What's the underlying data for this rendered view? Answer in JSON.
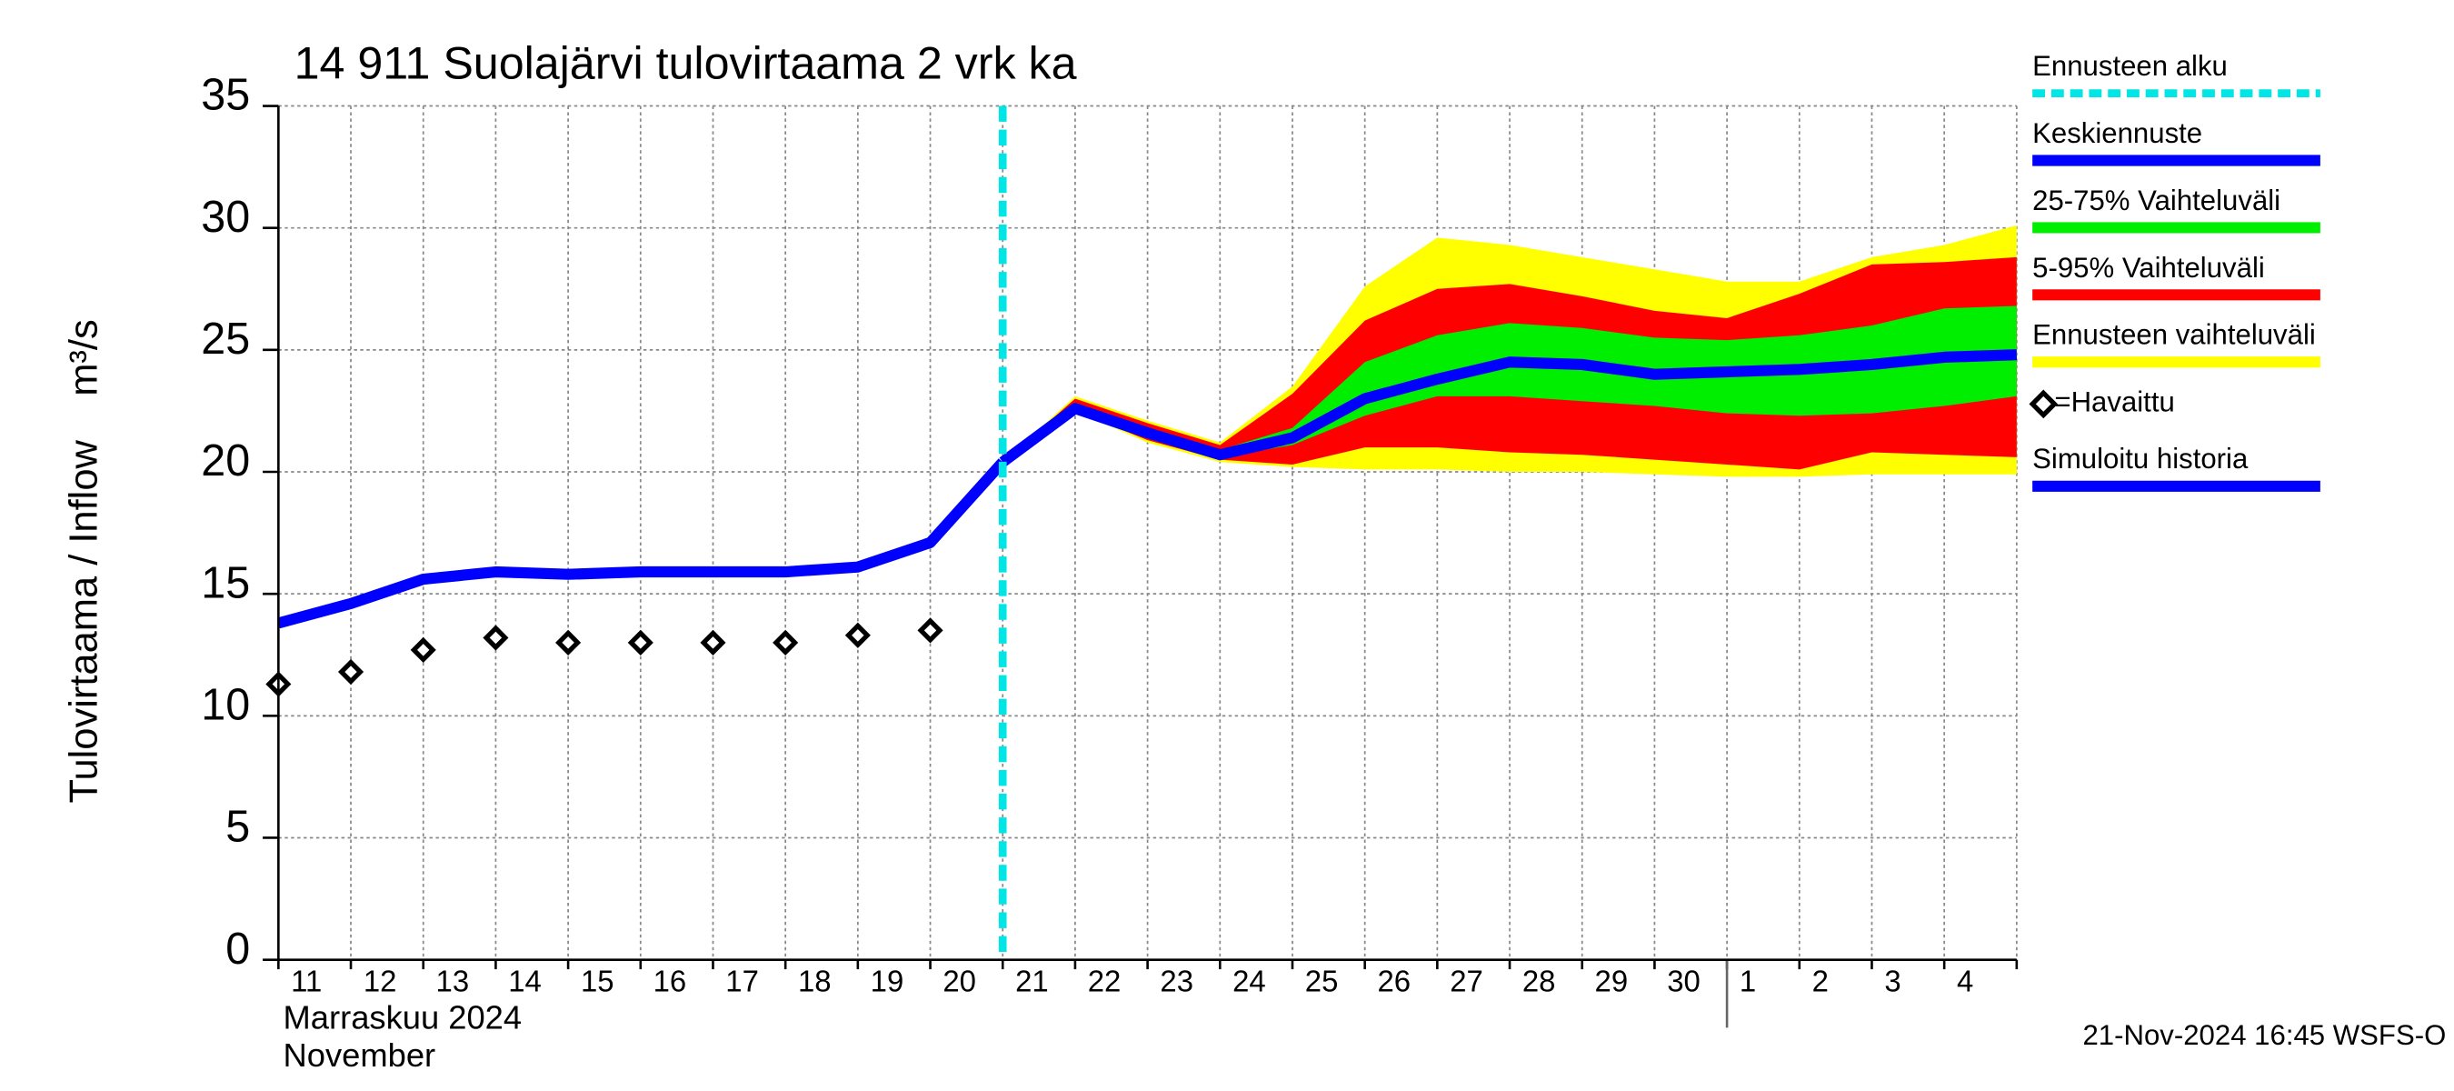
{
  "chart_data": {
    "type": "line",
    "title": "14 911 Suolajärvi tulovirtaama 2 vrk ka",
    "ylabel": "Tulovirtaama / Inflow    m³/s",
    "month_label": "Marraskuu 2024",
    "month_label_en": "November",
    "timestamp": "21-Nov-2024 16:45 WSFS-O",
    "categories": [
      "11",
      "12",
      "13",
      "14",
      "15",
      "16",
      "17",
      "18",
      "19",
      "20",
      "21",
      "22",
      "23",
      "24",
      "25",
      "26",
      "27",
      "28",
      "29",
      "30",
      "1",
      "2",
      "3",
      "4",
      null
    ],
    "month_break": "1",
    "forecast_start": {
      "name": "Ennusteen alku",
      "color": "#00e5e5",
      "at": "21"
    },
    "ylim": [
      0,
      35
    ],
    "yticks": [
      0,
      5,
      10,
      15,
      20,
      25,
      30,
      35
    ],
    "grid": true,
    "series": [
      {
        "name": "Keskiennuste",
        "kind": "line",
        "color": "#0000ff",
        "values": [
          null,
          null,
          null,
          null,
          null,
          null,
          null,
          null,
          null,
          null,
          20.4,
          22.6,
          21.6,
          20.7,
          21.4,
          23.0,
          23.8,
          24.5,
          24.4,
          24.0,
          24.1,
          24.2,
          24.4,
          24.7,
          24.8
        ]
      },
      {
        "name": "25-75% Vaihteluväli",
        "kind": "band",
        "color": "#00ee00",
        "lower": [
          null,
          null,
          null,
          null,
          null,
          null,
          null,
          null,
          null,
          null,
          20.4,
          22.6,
          21.5,
          20.6,
          21.1,
          22.3,
          23.1,
          23.1,
          22.9,
          22.7,
          22.4,
          22.3,
          22.4,
          22.7,
          23.1
        ],
        "upper": [
          null,
          null,
          null,
          null,
          null,
          null,
          null,
          null,
          null,
          null,
          20.4,
          22.8,
          21.8,
          20.9,
          21.8,
          24.5,
          25.6,
          26.1,
          25.9,
          25.5,
          25.4,
          25.6,
          26.0,
          26.7,
          26.8
        ]
      },
      {
        "name": "5-95% Vaihteluväli",
        "kind": "band",
        "color": "#ff0000",
        "lower": [
          null,
          null,
          null,
          null,
          null,
          null,
          null,
          null,
          null,
          null,
          20.4,
          22.5,
          21.3,
          20.5,
          20.3,
          21.0,
          21.0,
          20.8,
          20.7,
          20.5,
          20.3,
          20.1,
          20.8,
          20.7,
          20.6
        ],
        "upper": [
          null,
          null,
          null,
          null,
          null,
          null,
          null,
          null,
          null,
          null,
          20.4,
          23.0,
          22.0,
          21.1,
          23.2,
          26.2,
          27.5,
          27.7,
          27.2,
          26.6,
          26.3,
          27.3,
          28.5,
          28.6,
          28.8
        ]
      },
      {
        "name": "Ennusteen vaihteluväli",
        "kind": "band",
        "color": "#ffff00",
        "lower": [
          null,
          null,
          null,
          null,
          null,
          null,
          null,
          null,
          null,
          null,
          20.4,
          22.5,
          21.2,
          20.4,
          20.2,
          20.1,
          20.1,
          20.0,
          20.0,
          19.9,
          19.8,
          19.8,
          19.9,
          19.9,
          19.9
        ],
        "upper": [
          null,
          null,
          null,
          null,
          null,
          null,
          null,
          null,
          null,
          null,
          20.4,
          23.1,
          22.1,
          21.2,
          23.5,
          27.6,
          29.6,
          29.3,
          28.8,
          28.3,
          27.8,
          27.8,
          28.8,
          29.3,
          30.1
        ]
      },
      {
        "name": "=Havaittu",
        "kind": "scatter",
        "color": "#000000",
        "values": [
          11.3,
          11.8,
          12.7,
          13.2,
          13.0,
          13.0,
          13.0,
          13.0,
          13.3,
          13.5,
          null,
          null,
          null,
          null,
          null,
          null,
          null,
          null,
          null,
          null,
          null,
          null,
          null,
          null,
          null
        ]
      },
      {
        "name": "Simuloitu historia",
        "kind": "line",
        "color": "#0000ff",
        "values": [
          13.8,
          14.6,
          15.6,
          15.9,
          15.8,
          15.9,
          15.9,
          15.9,
          16.1,
          17.1,
          20.4,
          null,
          null,
          null,
          null,
          null,
          null,
          null,
          null,
          null,
          null,
          null,
          null,
          null,
          null
        ]
      }
    ]
  }
}
